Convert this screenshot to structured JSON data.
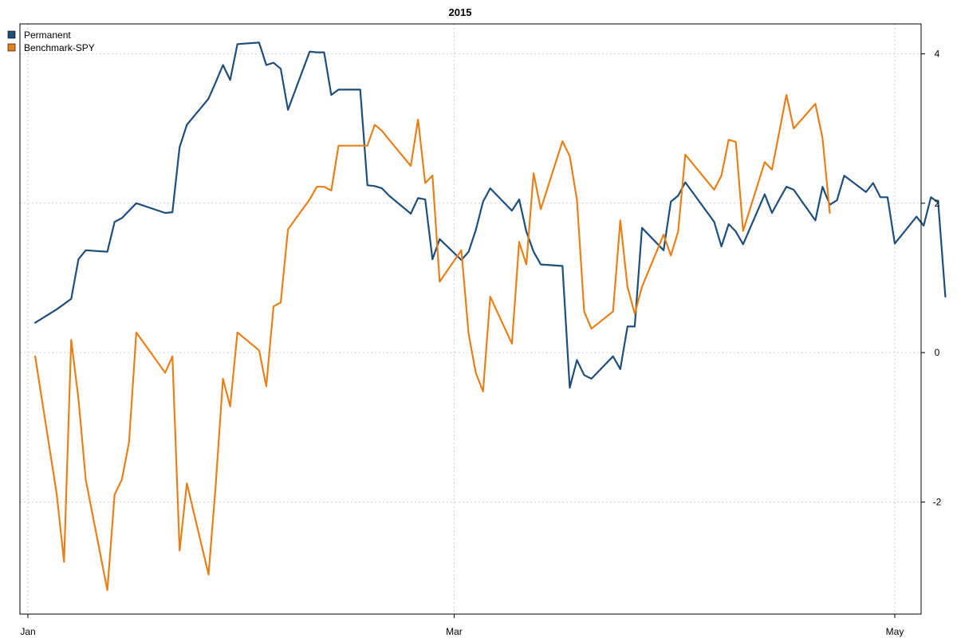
{
  "chart_data": {
    "type": "line",
    "title": "2015",
    "xlabel": "",
    "ylabel": "",
    "x_ticks": [
      {
        "date": "2015-01-01",
        "label": "Jan"
      },
      {
        "date": "2015-03-01",
        "label": "Mar"
      },
      {
        "date": "2015-05-01",
        "label": "May"
      }
    ],
    "xlim": [
      "2015-01-01",
      "2015-05-01"
    ],
    "y_ticks": [
      -2,
      0,
      2,
      4
    ],
    "ylim": [
      -3.5,
      4.4
    ],
    "grid": true,
    "legend_position": "top-left",
    "series": [
      {
        "name": "Permanent",
        "color": "#1f4e79",
        "points": [
          [
            "2015-01-02",
            0.4
          ],
          [
            "2015-01-05",
            0.58
          ],
          [
            "2015-01-06",
            0.65
          ],
          [
            "2015-01-07",
            0.72
          ],
          [
            "2015-01-08",
            1.25
          ],
          [
            "2015-01-09",
            1.37
          ],
          [
            "2015-01-12",
            1.35
          ],
          [
            "2015-01-13",
            1.75
          ],
          [
            "2015-01-14",
            1.8
          ],
          [
            "2015-01-15",
            1.9
          ],
          [
            "2015-01-16",
            2.0
          ],
          [
            "2015-01-20",
            1.87
          ],
          [
            "2015-01-21",
            1.88
          ],
          [
            "2015-01-22",
            2.75
          ],
          [
            "2015-01-23",
            3.05
          ],
          [
            "2015-01-26",
            3.4
          ],
          [
            "2015-01-27",
            3.62
          ],
          [
            "2015-01-28",
            3.85
          ],
          [
            "2015-01-29",
            3.65
          ],
          [
            "2015-01-30",
            4.13
          ],
          [
            "2015-02-02",
            4.15
          ],
          [
            "2015-02-03",
            3.85
          ],
          [
            "2015-02-04",
            3.88
          ],
          [
            "2015-02-05",
            3.8
          ],
          [
            "2015-02-06",
            3.25
          ],
          [
            "2015-02-09",
            4.03
          ],
          [
            "2015-02-10",
            4.02
          ],
          [
            "2015-02-11",
            4.02
          ],
          [
            "2015-02-12",
            3.45
          ],
          [
            "2015-02-13",
            3.52
          ],
          [
            "2015-02-16",
            3.52
          ],
          [
            "2015-02-17",
            2.24
          ],
          [
            "2015-02-18",
            2.23
          ],
          [
            "2015-02-19",
            2.2
          ],
          [
            "2015-02-20",
            2.1
          ],
          [
            "2015-02-23",
            1.86
          ],
          [
            "2015-02-24",
            2.07
          ],
          [
            "2015-02-25",
            2.05
          ],
          [
            "2015-02-26",
            1.25
          ],
          [
            "2015-02-27",
            1.52
          ],
          [
            "2015-03-02",
            1.24
          ],
          [
            "2015-03-03",
            1.35
          ],
          [
            "2015-03-04",
            1.64
          ],
          [
            "2015-03-05",
            2.02
          ],
          [
            "2015-03-06",
            2.2
          ],
          [
            "2015-03-09",
            1.9
          ],
          [
            "2015-03-10",
            2.05
          ],
          [
            "2015-03-11",
            1.62
          ],
          [
            "2015-03-12",
            1.35
          ],
          [
            "2015-03-13",
            1.18
          ],
          [
            "2015-03-16",
            1.16
          ],
          [
            "2015-03-17",
            -0.47
          ],
          [
            "2015-03-18",
            -0.1
          ],
          [
            "2015-03-19",
            -0.3
          ],
          [
            "2015-03-20",
            -0.35
          ],
          [
            "2015-03-23",
            -0.05
          ],
          [
            "2015-03-24",
            -0.22
          ],
          [
            "2015-03-25",
            0.35
          ],
          [
            "2015-03-26",
            0.35
          ],
          [
            "2015-03-27",
            1.67
          ],
          [
            "2015-03-30",
            1.37
          ],
          [
            "2015-03-31",
            2.02
          ],
          [
            "2015-04-01",
            2.1
          ],
          [
            "2015-04-02",
            2.28
          ],
          [
            "2015-04-06",
            1.75
          ],
          [
            "2015-04-07",
            1.42
          ],
          [
            "2015-04-08",
            1.72
          ],
          [
            "2015-04-09",
            1.62
          ],
          [
            "2015-04-10",
            1.45
          ],
          [
            "2015-04-13",
            2.12
          ],
          [
            "2015-04-14",
            1.87
          ],
          [
            "2015-04-15",
            2.05
          ],
          [
            "2015-04-16",
            2.22
          ],
          [
            "2015-04-17",
            2.18
          ],
          [
            "2015-04-20",
            1.77
          ],
          [
            "2015-04-21",
            2.22
          ],
          [
            "2015-04-22",
            1.98
          ],
          [
            "2015-04-23",
            2.04
          ],
          [
            "2015-04-24",
            2.37
          ],
          [
            "2015-04-27",
            2.15
          ],
          [
            "2015-04-28",
            2.27
          ],
          [
            "2015-04-29",
            2.08
          ],
          [
            "2015-04-30",
            2.08
          ],
          [
            "2015-05-01",
            1.46
          ],
          [
            "2015-05-04",
            1.82
          ],
          [
            "2015-05-05",
            1.7
          ],
          [
            "2015-05-06",
            2.08
          ],
          [
            "2015-05-07",
            2.01
          ],
          [
            "2015-05-08",
            0.75
          ]
        ]
      },
      {
        "name": "Benchmark-SPY",
        "color": "#e8801a",
        "points": [
          [
            "2015-01-02",
            -0.05
          ],
          [
            "2015-01-05",
            -1.9
          ],
          [
            "2015-01-06",
            -2.8
          ],
          [
            "2015-01-07",
            0.17
          ],
          [
            "2015-01-08",
            -0.62
          ],
          [
            "2015-01-09",
            -1.7
          ],
          [
            "2015-01-12",
            -3.18
          ],
          [
            "2015-01-13",
            -1.9
          ],
          [
            "2015-01-14",
            -1.7
          ],
          [
            "2015-01-15",
            -1.2
          ],
          [
            "2015-01-16",
            0.27
          ],
          [
            "2015-01-20",
            -0.27
          ],
          [
            "2015-01-21",
            -0.05
          ],
          [
            "2015-01-22",
            -2.65
          ],
          [
            "2015-01-23",
            -1.75
          ],
          [
            "2015-01-26",
            -2.97
          ],
          [
            "2015-01-27",
            -1.77
          ],
          [
            "2015-01-28",
            -0.35
          ],
          [
            "2015-01-29",
            -0.72
          ],
          [
            "2015-01-30",
            0.27
          ],
          [
            "2015-02-02",
            0.03
          ],
          [
            "2015-02-03",
            -0.45
          ],
          [
            "2015-02-04",
            0.62
          ],
          [
            "2015-02-05",
            0.67
          ],
          [
            "2015-02-06",
            1.65
          ],
          [
            "2015-02-09",
            2.05
          ],
          [
            "2015-02-10",
            2.22
          ],
          [
            "2015-02-11",
            2.22
          ],
          [
            "2015-02-12",
            2.17
          ],
          [
            "2015-02-13",
            2.77
          ],
          [
            "2015-02-16",
            2.77
          ],
          [
            "2015-02-17",
            2.77
          ],
          [
            "2015-02-18",
            3.05
          ],
          [
            "2015-02-19",
            2.97
          ],
          [
            "2015-02-20",
            2.85
          ],
          [
            "2015-02-23",
            2.5
          ],
          [
            "2015-02-24",
            3.12
          ],
          [
            "2015-02-25",
            2.27
          ],
          [
            "2015-02-26",
            2.37
          ],
          [
            "2015-02-27",
            0.95
          ],
          [
            "2015-03-02",
            1.37
          ],
          [
            "2015-03-03",
            0.25
          ],
          [
            "2015-03-04",
            -0.27
          ],
          [
            "2015-03-05",
            -0.52
          ],
          [
            "2015-03-06",
            0.75
          ],
          [
            "2015-03-09",
            0.12
          ],
          [
            "2015-03-10",
            1.48
          ],
          [
            "2015-03-11",
            1.18
          ],
          [
            "2015-03-12",
            2.4
          ],
          [
            "2015-03-13",
            1.92
          ],
          [
            "2015-03-16",
            2.83
          ],
          [
            "2015-03-17",
            2.63
          ],
          [
            "2015-03-18",
            2.05
          ],
          [
            "2015-03-19",
            0.55
          ],
          [
            "2015-03-20",
            0.32
          ],
          [
            "2015-03-23",
            0.55
          ],
          [
            "2015-03-24",
            1.77
          ],
          [
            "2015-03-25",
            0.88
          ],
          [
            "2015-03-26",
            0.52
          ],
          [
            "2015-03-27",
            0.88
          ],
          [
            "2015-03-30",
            1.58
          ],
          [
            "2015-03-31",
            1.3
          ],
          [
            "2015-04-01",
            1.62
          ],
          [
            "2015-04-02",
            2.65
          ],
          [
            "2015-04-06",
            2.18
          ],
          [
            "2015-04-07",
            2.37
          ],
          [
            "2015-04-08",
            2.85
          ],
          [
            "2015-04-09",
            2.82
          ],
          [
            "2015-04-10",
            1.63
          ],
          [
            "2015-04-13",
            2.55
          ],
          [
            "2015-04-14",
            2.45
          ],
          [
            "2015-04-15",
            2.95
          ],
          [
            "2015-04-16",
            3.45
          ],
          [
            "2015-04-17",
            3.0
          ],
          [
            "2015-04-20",
            3.33
          ],
          [
            "2015-04-21",
            2.87
          ],
          [
            "2015-04-22",
            1.87
          ]
        ]
      }
    ]
  }
}
